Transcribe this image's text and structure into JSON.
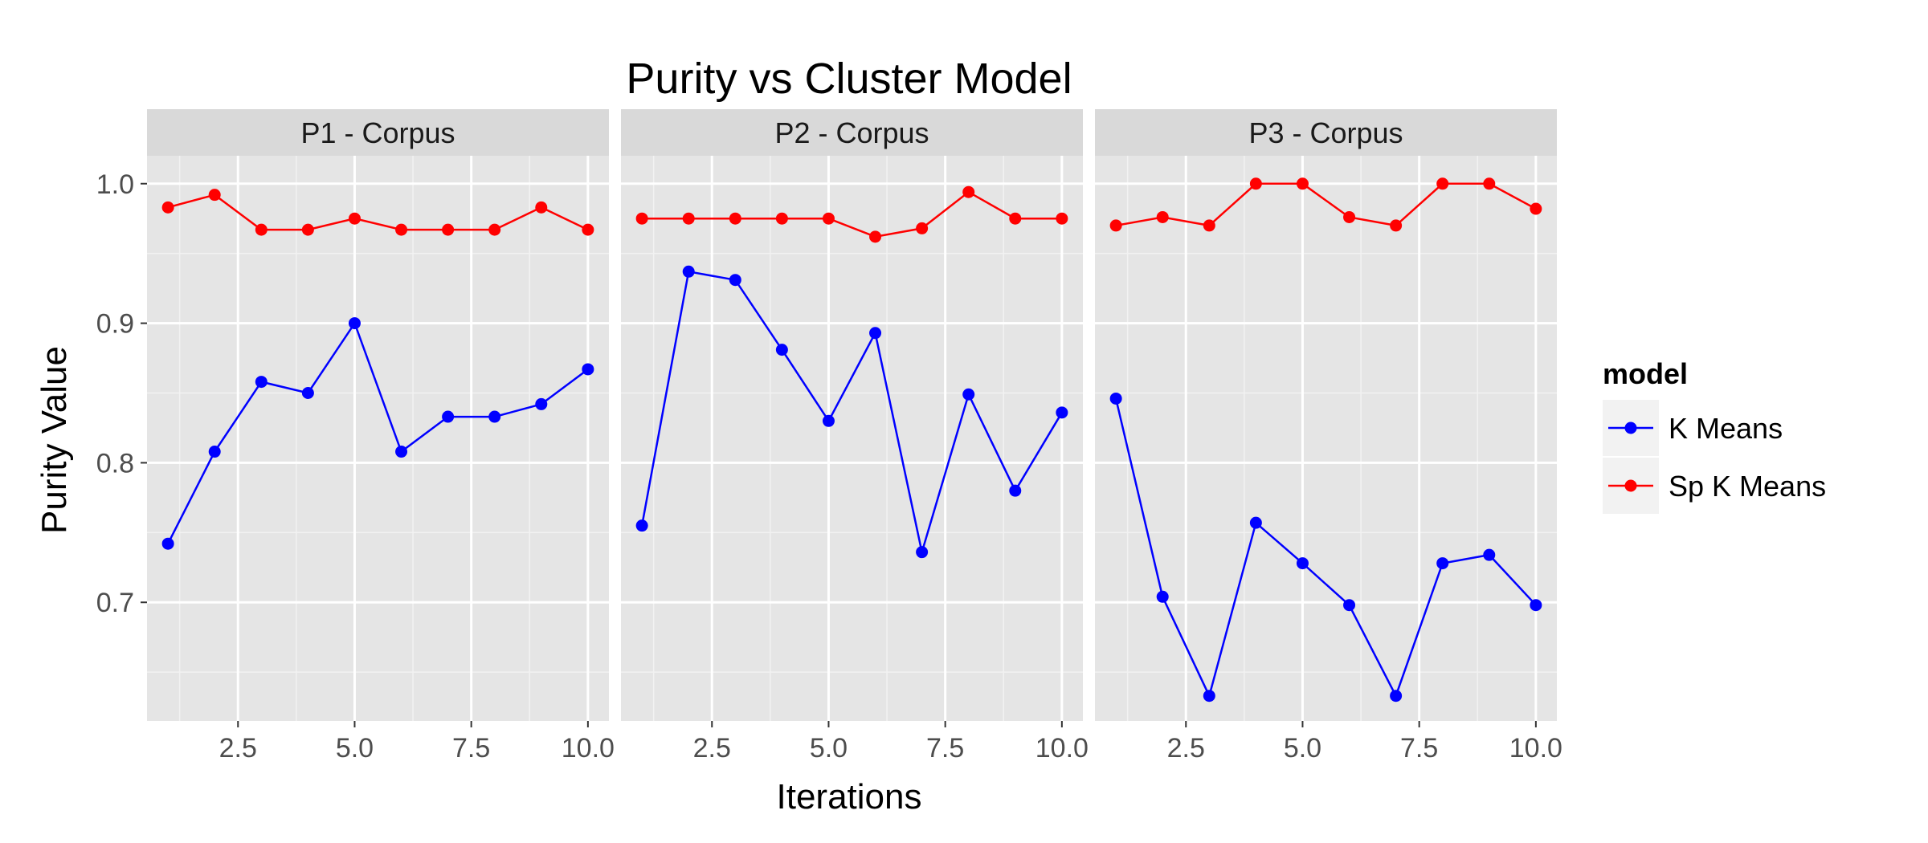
{
  "chart_data": {
    "type": "line",
    "title": "Purity vs Cluster Model",
    "xlabel": "Iterations",
    "ylabel": "Purity Value",
    "xlim": [
      0.55,
      10.45
    ],
    "ylim": [
      0.615,
      1.02
    ],
    "x_ticks": [
      2.5,
      5.0,
      7.5,
      10.0
    ],
    "x_tick_labels": [
      "2.5",
      "5.0",
      "7.5",
      "10.0"
    ],
    "y_ticks": [
      0.7,
      0.8,
      0.9,
      1.0
    ],
    "y_tick_labels": [
      "0.7",
      "0.8",
      "0.9",
      "1.0"
    ],
    "grid": true,
    "legend": {
      "title": "model",
      "position": "right",
      "entries": [
        {
          "label": "K Means",
          "color": "#0000ff"
        },
        {
          "label": "Sp K Means",
          "color": "#ff0000"
        }
      ]
    },
    "facets": [
      {
        "label": "P1 - Corpus",
        "x": [
          1,
          2,
          3,
          4,
          5,
          6,
          7,
          8,
          9,
          10
        ],
        "series": [
          {
            "name": "K Means",
            "color": "#0000ff",
            "values": [
              0.742,
              0.808,
              0.858,
              0.85,
              0.9,
              0.808,
              0.833,
              0.833,
              0.842,
              0.867
            ]
          },
          {
            "name": "Sp K Means",
            "color": "#ff0000",
            "values": [
              0.983,
              0.992,
              0.967,
              0.967,
              0.975,
              0.967,
              0.967,
              0.967,
              0.983,
              0.967
            ]
          }
        ]
      },
      {
        "label": "P2 - Corpus",
        "x": [
          1,
          2,
          3,
          4,
          5,
          6,
          7,
          8,
          9,
          10
        ],
        "series": [
          {
            "name": "K Means",
            "color": "#0000ff",
            "values": [
              0.755,
              0.937,
              0.931,
              0.881,
              0.83,
              0.893,
              0.736,
              0.849,
              0.78,
              0.836
            ]
          },
          {
            "name": "Sp K Means",
            "color": "#ff0000",
            "values": [
              0.975,
              0.975,
              0.975,
              0.975,
              0.975,
              0.962,
              0.968,
              0.994,
              0.975,
              0.975
            ]
          }
        ]
      },
      {
        "label": "P3 - Corpus",
        "x": [
          1,
          2,
          3,
          4,
          5,
          6,
          7,
          8,
          9,
          10
        ],
        "series": [
          {
            "name": "K Means",
            "color": "#0000ff",
            "values": [
              0.846,
              0.704,
              0.633,
              0.757,
              0.728,
              0.698,
              0.633,
              0.728,
              0.734,
              0.698
            ]
          },
          {
            "name": "Sp K Means",
            "color": "#ff0000",
            "values": [
              0.97,
              0.976,
              0.97,
              1.0,
              1.0,
              0.976,
              0.97,
              1.0,
              1.0,
              0.982
            ]
          }
        ]
      }
    ]
  }
}
